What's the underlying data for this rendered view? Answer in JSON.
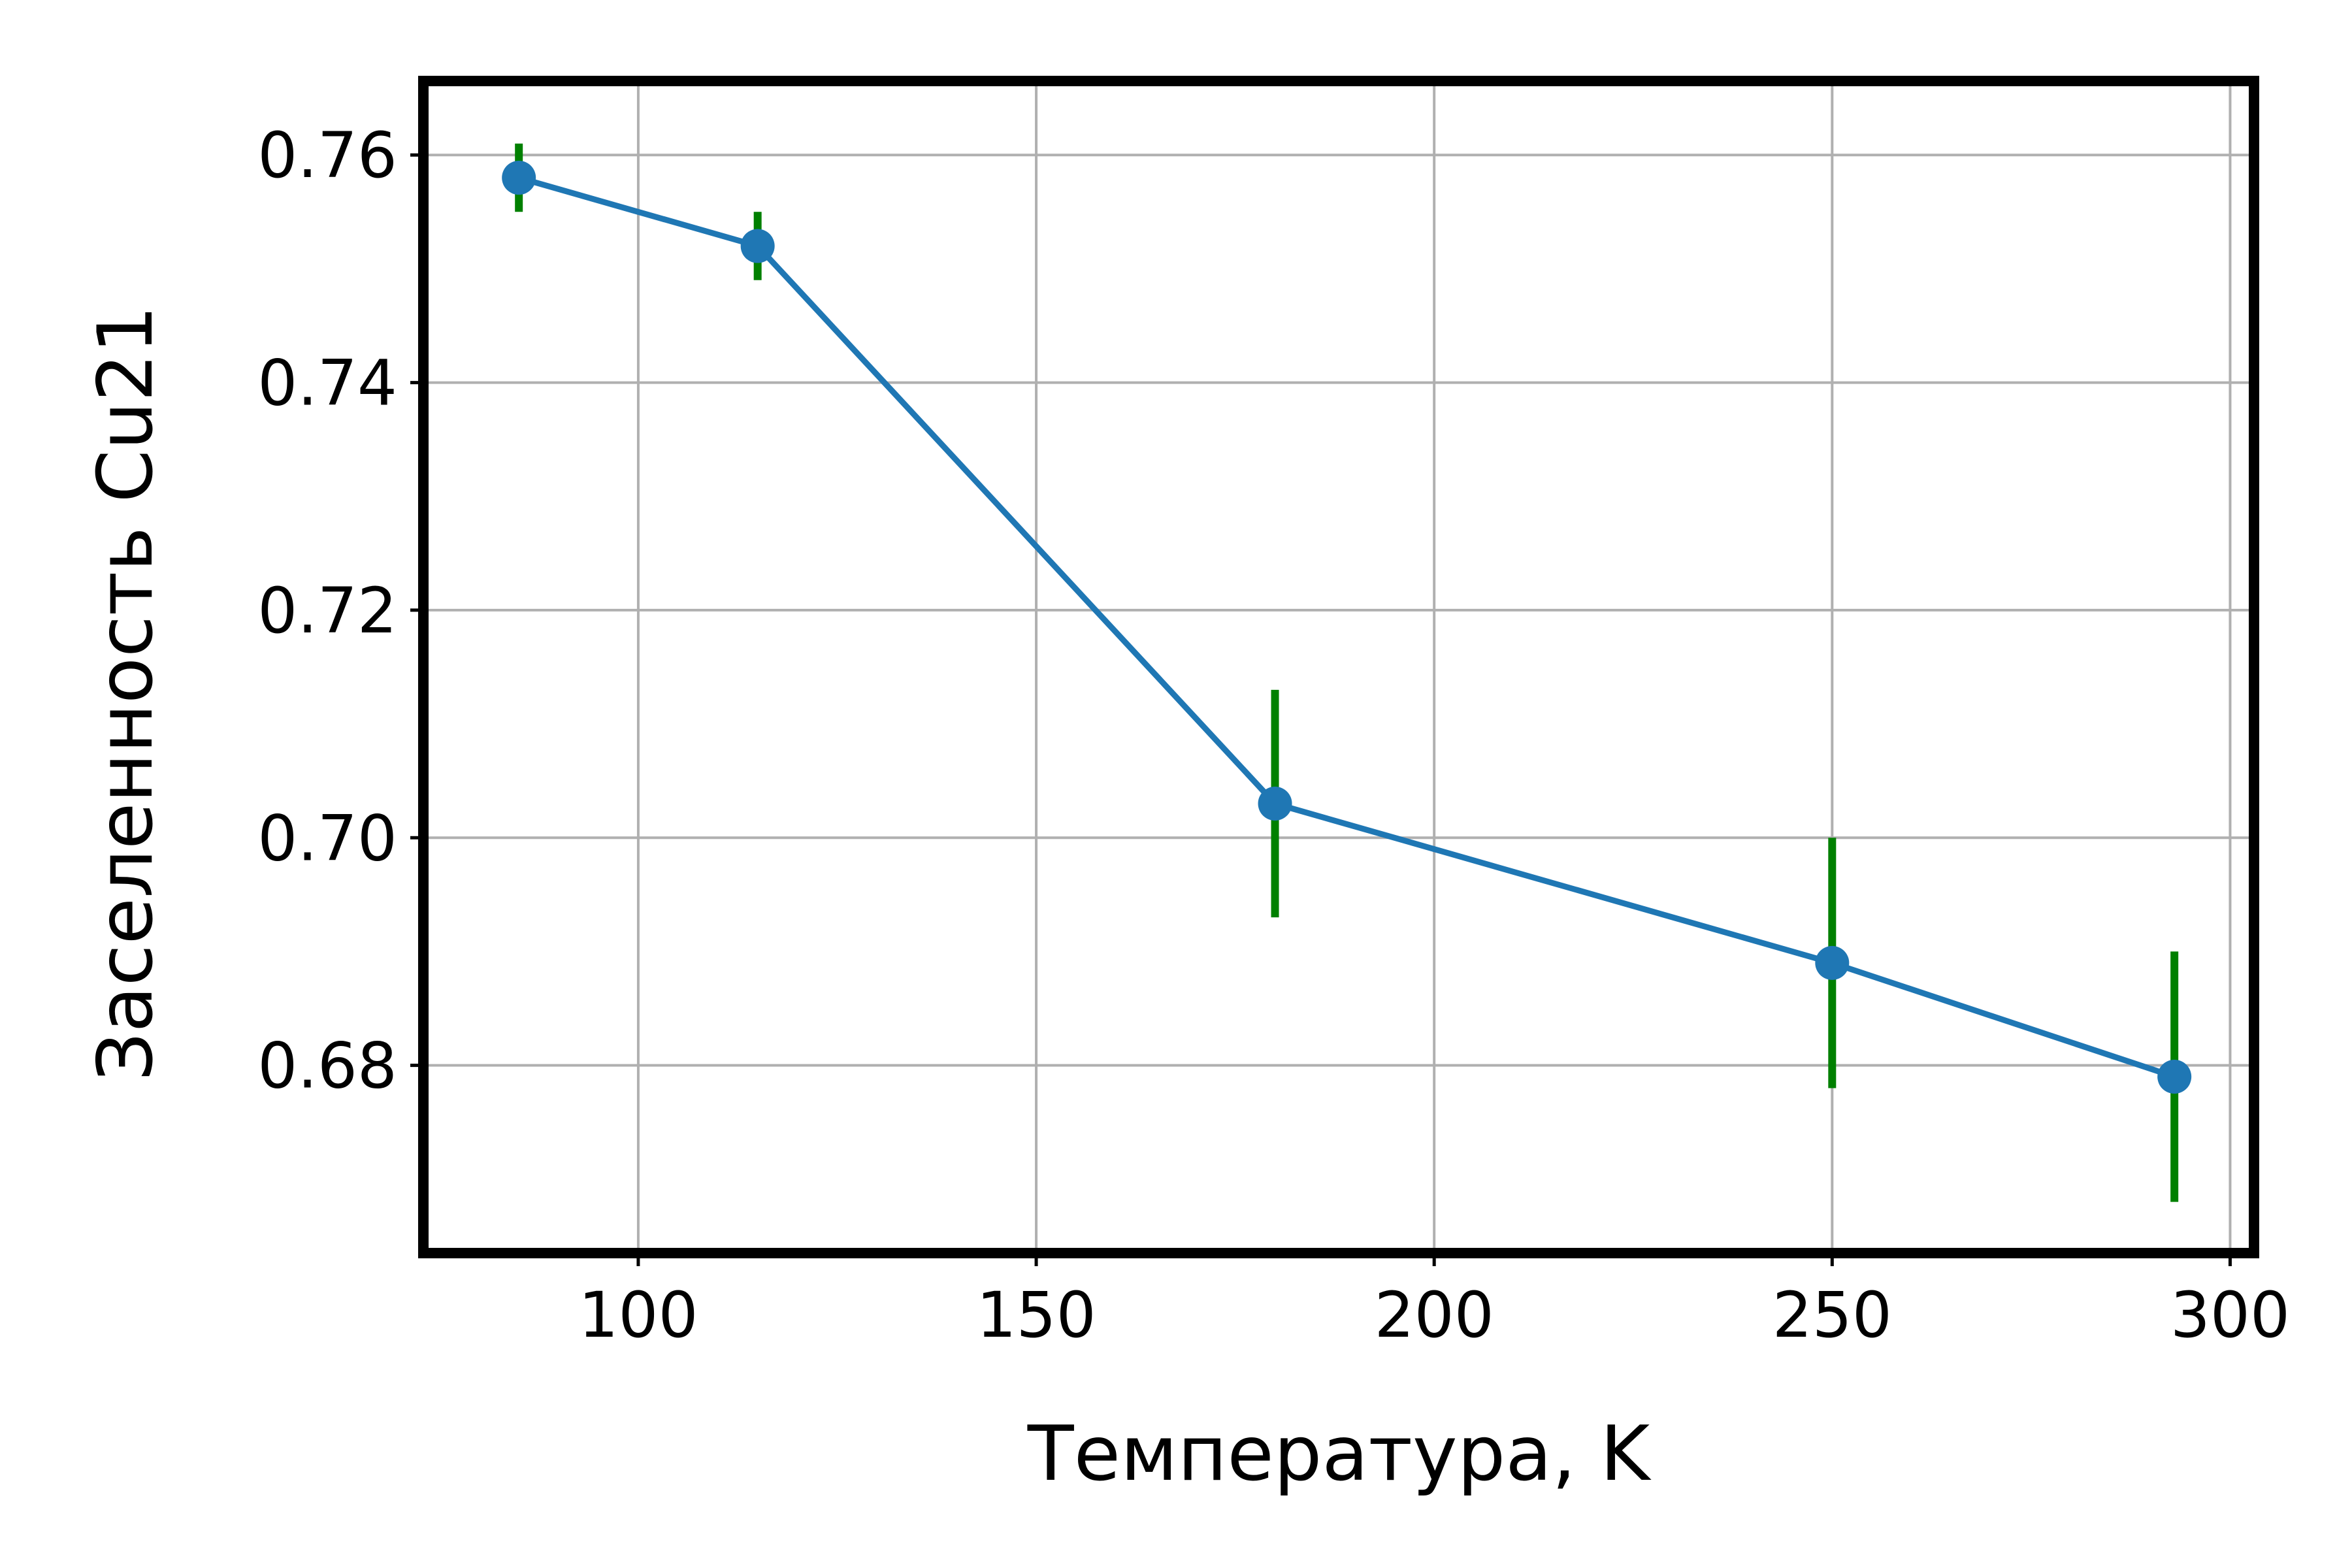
{
  "chart_data": {
    "type": "line",
    "title": "",
    "xlabel": "Температура, K",
    "ylabel": "Заселенность Cu21",
    "xlim": [
      73,
      303
    ],
    "ylim": [
      0.6635,
      0.7665
    ],
    "xticks": [
      100,
      150,
      200,
      250,
      300
    ],
    "yticks": [
      0.68,
      0.7,
      0.72,
      0.74,
      0.76
    ],
    "xtick_labels": [
      "100",
      "150",
      "200",
      "250",
      "300"
    ],
    "ytick_labels": [
      "0.68",
      "0.70",
      "0.72",
      "0.74",
      "0.76"
    ],
    "grid": true,
    "legend": "none",
    "series": [
      {
        "color": "#1f77b4",
        "errorbar_color": "#008000",
        "x": [
          85,
          115,
          180,
          250,
          293
        ],
        "y": [
          0.758,
          0.752,
          0.703,
          0.689,
          0.679
        ],
        "yerr": [
          0.003,
          0.003,
          0.01,
          0.011,
          0.011
        ]
      }
    ]
  }
}
